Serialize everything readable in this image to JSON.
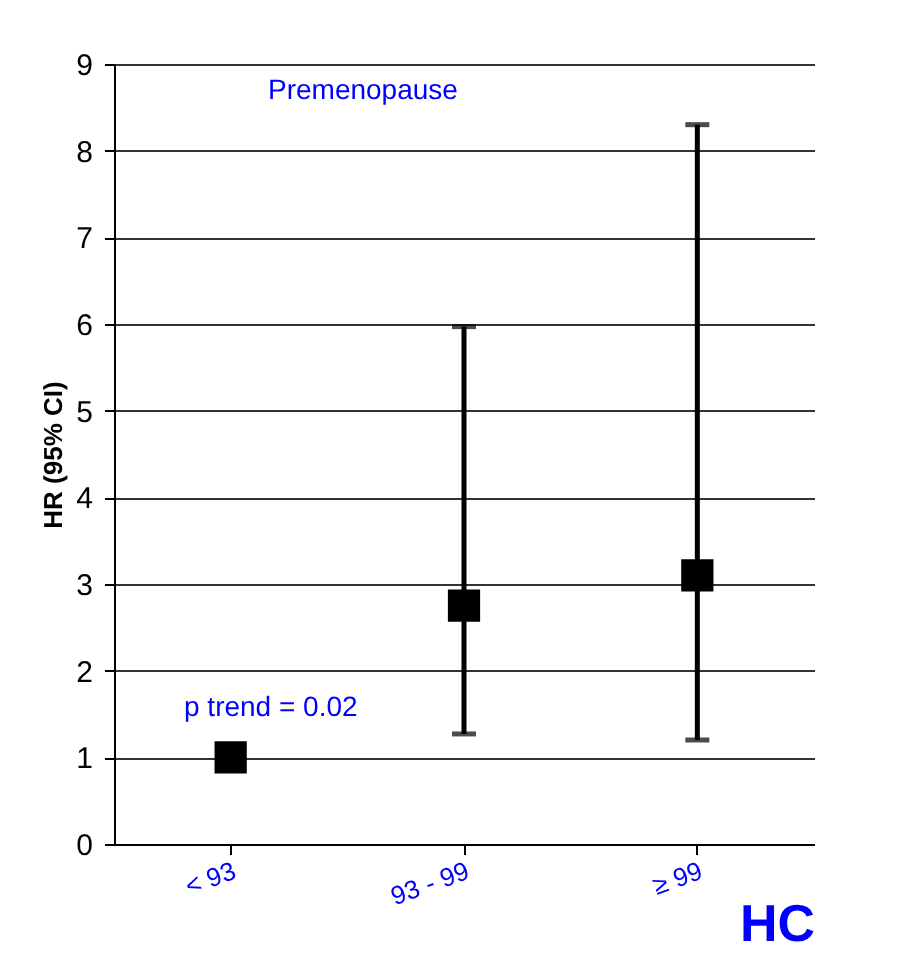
{
  "chart_data": {
    "type": "scatter",
    "categories": [
      "< 93",
      "93 - 99",
      "≥ 99"
    ],
    "series": [
      {
        "color": "#000000",
        "values": [
          1.0,
          2.75,
          3.1
        ],
        "errors": [
          null,
          [
            1.27,
            5.97
          ],
          [
            1.2,
            8.3
          ]
        ]
      }
    ],
    "ylabel": "HR (95% CI)",
    "xlabel": "HC",
    "ylim": [
      0,
      9
    ],
    "yticks": [
      0,
      1,
      2,
      3,
      4,
      5,
      6,
      7,
      8,
      9
    ],
    "grid": "y",
    "marker": "square",
    "annotations": [
      "Premenopause",
      "p trend = 0.02"
    ]
  }
}
